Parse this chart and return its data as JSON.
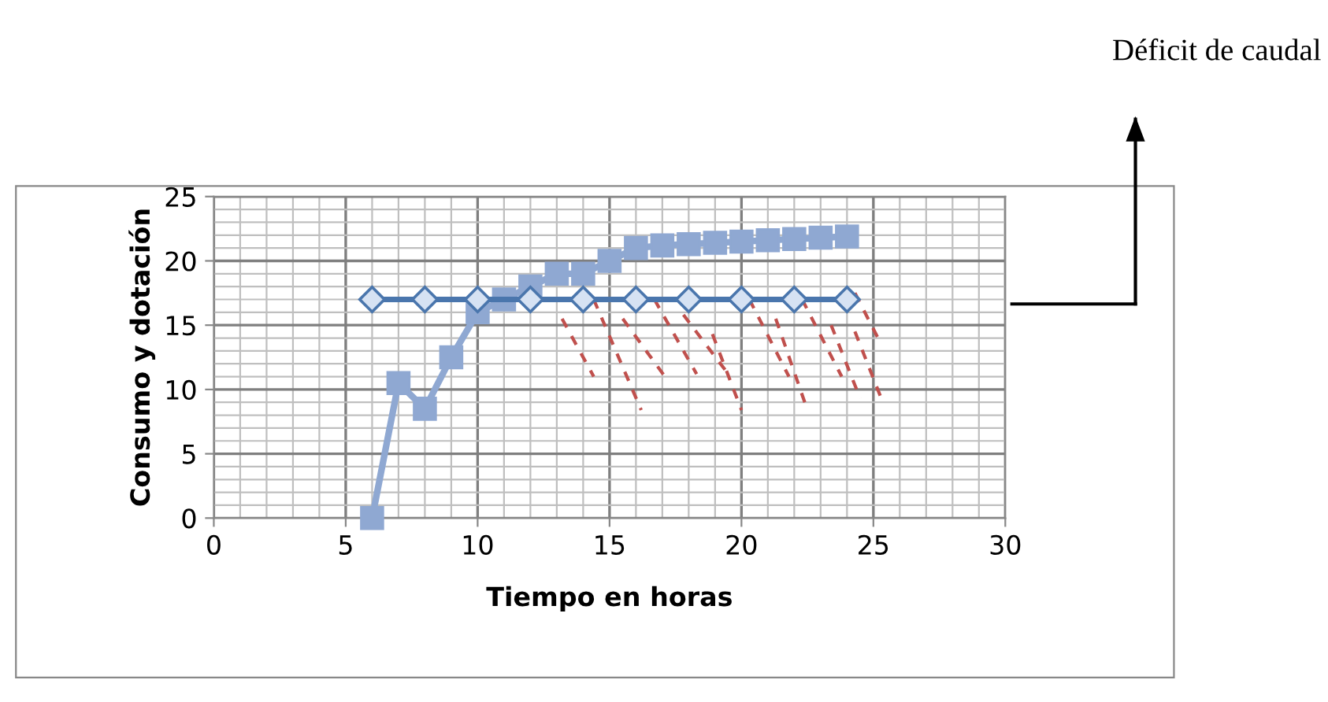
{
  "chart_data": {
    "type": "line",
    "xlabel": "Tiempo en horas",
    "ylabel": "Consumo y dotación",
    "xlim": [
      0,
      30
    ],
    "ylim": [
      0,
      25
    ],
    "xticks": [
      0,
      5,
      10,
      15,
      20,
      25,
      30
    ],
    "yticks": [
      0,
      5,
      10,
      15,
      20,
      25
    ],
    "grid": true,
    "legend": false,
    "annotations": [
      "Déficit de caudal"
    ],
    "series": [
      {
        "color": "#4a76ad",
        "marker": "diamond",
        "x": [
          6,
          8,
          10,
          12,
          14,
          16,
          18,
          20,
          22,
          24
        ],
        "values": [
          17,
          17,
          17,
          17,
          17,
          17,
          17,
          17,
          17,
          17
        ]
      },
      {
        "color": "#8fa8d2",
        "marker": "square",
        "x": [
          6,
          7,
          8,
          9,
          10,
          11,
          12,
          13,
          14,
          15,
          16,
          17,
          18,
          19,
          20,
          21,
          22,
          23,
          24
        ],
        "values": [
          0,
          10.5,
          8.5,
          12.5,
          16,
          17,
          18,
          19,
          19,
          20,
          21,
          21.2,
          21.3,
          21.4,
          21.5,
          21.6,
          21.7,
          21.8,
          21.9
        ]
      }
    ]
  }
}
